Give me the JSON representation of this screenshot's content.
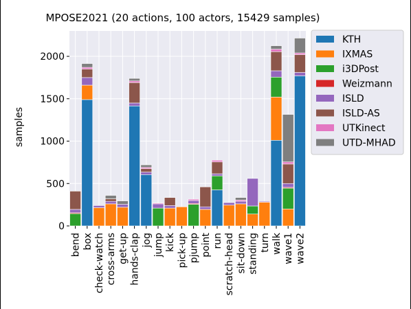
{
  "chart_data": {
    "type": "bar",
    "stacked": true,
    "title": "MPOSE2021 (20 actions, 100 actors, 15429 samples)",
    "xlabel": "",
    "ylabel": "samples",
    "ylim": [
      0,
      2300
    ],
    "yticks": [
      0,
      500,
      1000,
      1500,
      2000
    ],
    "grid": true,
    "legend_position": "right",
    "categories": [
      "bend",
      "box",
      "check-watch",
      "cross-arms",
      "get-up",
      "hands-clap",
      "jog",
      "jump",
      "kick",
      "pick-up",
      "pjump",
      "point",
      "run",
      "scratch-head",
      "sit-down",
      "standing",
      "turn",
      "walk",
      "wave1",
      "wave2"
    ],
    "series": [
      {
        "name": "KTH",
        "color": "#1f77b4",
        "values": [
          0,
          1490,
          0,
          0,
          0,
          1415,
          605,
          0,
          0,
          0,
          0,
          0,
          425,
          0,
          0,
          0,
          0,
          1010,
          0,
          1770
        ]
      },
      {
        "name": "IXMAS",
        "color": "#ff7f0e",
        "values": [
          0,
          170,
          215,
          260,
          220,
          0,
          0,
          0,
          210,
          225,
          0,
          195,
          0,
          245,
          260,
          140,
          280,
          510,
          200,
          0
        ]
      },
      {
        "name": "i3DPost",
        "color": "#2ca02c",
        "values": [
          145,
          0,
          0,
          0,
          0,
          0,
          0,
          210,
          0,
          0,
          255,
          0,
          165,
          0,
          0,
          95,
          0,
          235,
          245,
          0
        ]
      },
      {
        "name": "Weizmann",
        "color": "#d62728",
        "values": [
          10,
          0,
          0,
          0,
          0,
          0,
          0,
          0,
          0,
          0,
          10,
          0,
          0,
          0,
          0,
          0,
          0,
          0,
          10,
          0
        ]
      },
      {
        "name": "ISLD",
        "color": "#9467bd",
        "values": [
          40,
          90,
          25,
          30,
          35,
          35,
          30,
          50,
          30,
          0,
          35,
          30,
          25,
          30,
          30,
          325,
          10,
          75,
          45,
          40
        ]
      },
      {
        "name": "ISLD-AS",
        "color": "#8c564b",
        "values": [
          215,
          100,
          0,
          30,
          0,
          240,
          40,
          0,
          95,
          0,
          0,
          235,
          140,
          0,
          0,
          0,
          0,
          225,
          230,
          210
        ]
      },
      {
        "name": "UTKinect",
        "color": "#e377c2",
        "values": [
          0,
          20,
          0,
          0,
          0,
          20,
          15,
          10,
          0,
          0,
          15,
          0,
          20,
          0,
          15,
          0,
          0,
          30,
          25,
          20
        ]
      },
      {
        "name": "UTD-MHAD",
        "color": "#7f7f7f",
        "values": [
          0,
          45,
          0,
          40,
          40,
          30,
          30,
          0,
          0,
          0,
          0,
          0,
          0,
          0,
          30,
          0,
          0,
          40,
          560,
          175
        ]
      }
    ]
  }
}
